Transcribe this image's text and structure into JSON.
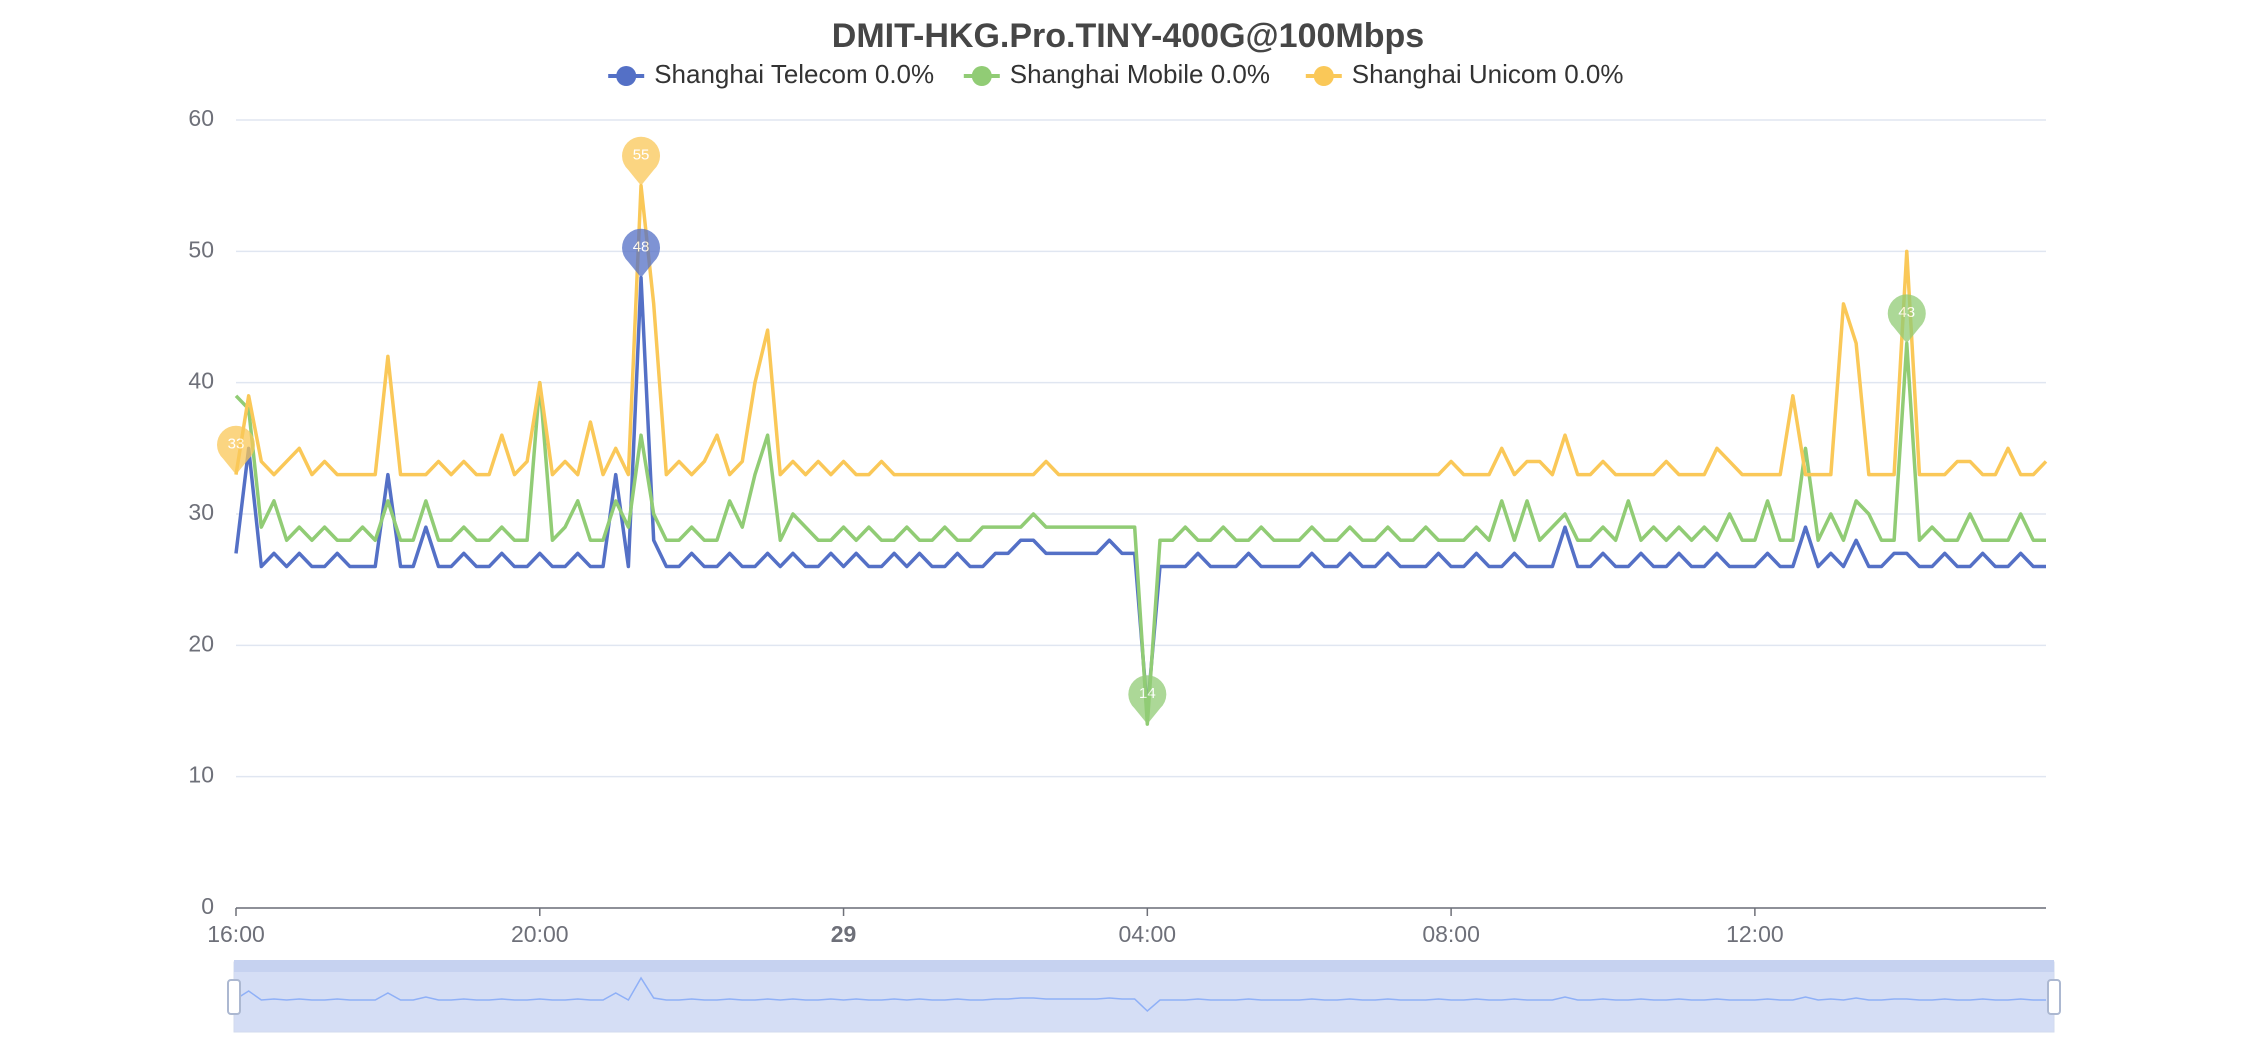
{
  "chart_data": {
    "type": "line",
    "title": "DMIT-HKG.Pro.TINY-400G@100Mbps",
    "x": [
      "16:00",
      "16:10",
      "16:20",
      "16:30",
      "16:40",
      "16:50",
      "17:00",
      "17:10",
      "17:20",
      "17:30",
      "17:40",
      "17:50",
      "18:00",
      "18:10",
      "18:20",
      "18:30",
      "18:40",
      "18:50",
      "19:00",
      "19:10",
      "19:20",
      "19:30",
      "19:40",
      "19:50",
      "20:00",
      "20:10",
      "20:20",
      "20:30",
      "20:40",
      "20:50",
      "21:00",
      "21:10",
      "21:20",
      "21:30",
      "21:40",
      "21:50",
      "22:00",
      "22:10",
      "22:20",
      "22:30",
      "22:40",
      "22:50",
      "23:00",
      "23:10",
      "23:20",
      "23:30",
      "23:40",
      "23:50",
      "00:00",
      "00:10",
      "00:20",
      "00:30",
      "00:40",
      "00:50",
      "01:00",
      "01:10",
      "01:20",
      "01:30",
      "01:40",
      "01:50",
      "02:00",
      "02:10",
      "02:20",
      "02:30",
      "02:40",
      "02:50",
      "03:00",
      "03:10",
      "03:20",
      "03:30",
      "03:40",
      "03:50",
      "04:00",
      "04:10",
      "04:20",
      "04:30",
      "04:40",
      "04:50",
      "05:00",
      "05:10",
      "05:20",
      "05:30",
      "05:40",
      "05:50",
      "06:00",
      "06:10",
      "06:20",
      "06:30",
      "06:40",
      "06:50",
      "07:00",
      "07:10",
      "07:20",
      "07:30",
      "07:40",
      "07:50",
      "08:00",
      "08:10",
      "08:20",
      "08:30",
      "08:40",
      "08:50",
      "09:00",
      "09:10",
      "09:20",
      "09:30",
      "09:40",
      "09:50",
      "10:00",
      "10:10",
      "10:20",
      "10:30",
      "10:40",
      "10:50",
      "11:00",
      "11:10",
      "11:20",
      "11:30",
      "11:40",
      "11:50",
      "12:00",
      "12:10",
      "12:20",
      "12:30",
      "12:40",
      "12:50",
      "13:00",
      "13:10",
      "13:20",
      "13:30",
      "13:40",
      "13:50",
      "14:00",
      "14:10",
      "14:20",
      "14:30",
      "14:40",
      "14:50",
      "15:00",
      "15:10",
      "15:20",
      "15:30",
      "15:40",
      "15:50"
    ],
    "series": [
      {
        "name": "Shanghai Telecom 0.0%",
        "color": "#5470c6",
        "values": [
          27,
          35,
          26,
          27,
          26,
          27,
          26,
          26,
          27,
          26,
          26,
          26,
          33,
          26,
          26,
          29,
          26,
          26,
          27,
          26,
          26,
          27,
          26,
          26,
          27,
          26,
          26,
          27,
          26,
          26,
          33,
          26,
          48,
          28,
          26,
          26,
          27,
          26,
          26,
          27,
          26,
          26,
          27,
          26,
          27,
          26,
          26,
          27,
          26,
          27,
          26,
          26,
          27,
          26,
          27,
          26,
          26,
          27,
          26,
          26,
          27,
          27,
          28,
          28,
          27,
          27,
          27,
          27,
          27,
          28,
          27,
          27,
          15,
          26,
          26,
          26,
          27,
          26,
          26,
          26,
          27,
          26,
          26,
          26,
          26,
          27,
          26,
          26,
          27,
          26,
          26,
          27,
          26,
          26,
          26,
          27,
          26,
          26,
          27,
          26,
          26,
          27,
          26,
          26,
          26,
          29,
          26,
          26,
          27,
          26,
          26,
          27,
          26,
          26,
          27,
          26,
          26,
          27,
          26,
          26,
          26,
          27,
          26,
          26,
          29,
          26,
          27,
          26,
          28,
          26,
          26,
          27,
          27,
          26,
          26,
          27,
          26,
          26,
          27,
          26,
          26,
          27,
          26,
          26
        ],
        "mark_points": [
          {
            "x": "21:20",
            "value": 48
          }
        ]
      },
      {
        "name": "Shanghai Mobile 0.0%",
        "color": "#91cc75",
        "values": [
          39,
          38,
          29,
          31,
          28,
          29,
          28,
          29,
          28,
          28,
          29,
          28,
          31,
          28,
          28,
          31,
          28,
          28,
          29,
          28,
          28,
          29,
          28,
          28,
          40,
          28,
          29,
          31,
          28,
          28,
          31,
          29,
          36,
          30,
          28,
          28,
          29,
          28,
          28,
          31,
          29,
          33,
          36,
          28,
          30,
          29,
          28,
          28,
          29,
          28,
          29,
          28,
          28,
          29,
          28,
          28,
          29,
          28,
          28,
          29,
          29,
          29,
          29,
          30,
          29,
          29,
          29,
          29,
          29,
          29,
          29,
          29,
          14,
          28,
          28,
          29,
          28,
          28,
          29,
          28,
          28,
          29,
          28,
          28,
          28,
          29,
          28,
          28,
          29,
          28,
          28,
          29,
          28,
          28,
          29,
          28,
          28,
          28,
          29,
          28,
          31,
          28,
          31,
          28,
          29,
          30,
          28,
          28,
          29,
          28,
          31,
          28,
          29,
          28,
          29,
          28,
          29,
          28,
          30,
          28,
          28,
          31,
          28,
          28,
          35,
          28,
          30,
          28,
          31,
          30,
          28,
          28,
          43,
          28,
          29,
          28,
          28,
          30,
          28,
          28,
          28,
          30,
          28,
          28
        ],
        "mark_points": [
          {
            "x": "14:00",
            "value": 43
          },
          {
            "x": "04:00",
            "value": 14
          }
        ]
      },
      {
        "name": "Shanghai Unicom 0.0%",
        "color": "#fac858",
        "values": [
          33,
          39,
          34,
          33,
          34,
          35,
          33,
          34,
          33,
          33,
          33,
          33,
          42,
          33,
          33,
          33,
          34,
          33,
          34,
          33,
          33,
          36,
          33,
          34,
          40,
          33,
          34,
          33,
          37,
          33,
          35,
          33,
          55,
          46,
          33,
          34,
          33,
          34,
          36,
          33,
          34,
          40,
          44,
          33,
          34,
          33,
          34,
          33,
          34,
          33,
          33,
          34,
          33,
          33,
          33,
          33,
          33,
          33,
          33,
          33,
          33,
          33,
          33,
          33,
          34,
          33,
          33,
          33,
          33,
          33,
          33,
          33,
          33,
          33,
          33,
          33,
          33,
          33,
          33,
          33,
          33,
          33,
          33,
          33,
          33,
          33,
          33,
          33,
          33,
          33,
          33,
          33,
          33,
          33,
          33,
          33,
          34,
          33,
          33,
          33,
          35,
          33,
          34,
          34,
          33,
          36,
          33,
          33,
          34,
          33,
          33,
          33,
          33,
          34,
          33,
          33,
          33,
          35,
          34,
          33,
          33,
          33,
          33,
          39,
          33,
          33,
          33,
          46,
          43,
          33,
          33,
          33,
          50,
          33,
          33,
          33,
          34,
          34,
          33,
          33,
          35,
          33,
          33,
          34
        ],
        "mark_points": [
          {
            "x": "21:20",
            "value": 55
          },
          {
            "x": "16:00",
            "value": 33
          }
        ]
      }
    ],
    "xticks": [
      "16:00",
      "20:00",
      {
        "value": "00:00",
        "label": "29"
      },
      "04:00",
      "08:00",
      "12:00"
    ],
    "ylim": [
      0,
      60
    ],
    "yticks": [
      0,
      10,
      20,
      30,
      40,
      50,
      60
    ],
    "grid": true,
    "legend": "top"
  }
}
